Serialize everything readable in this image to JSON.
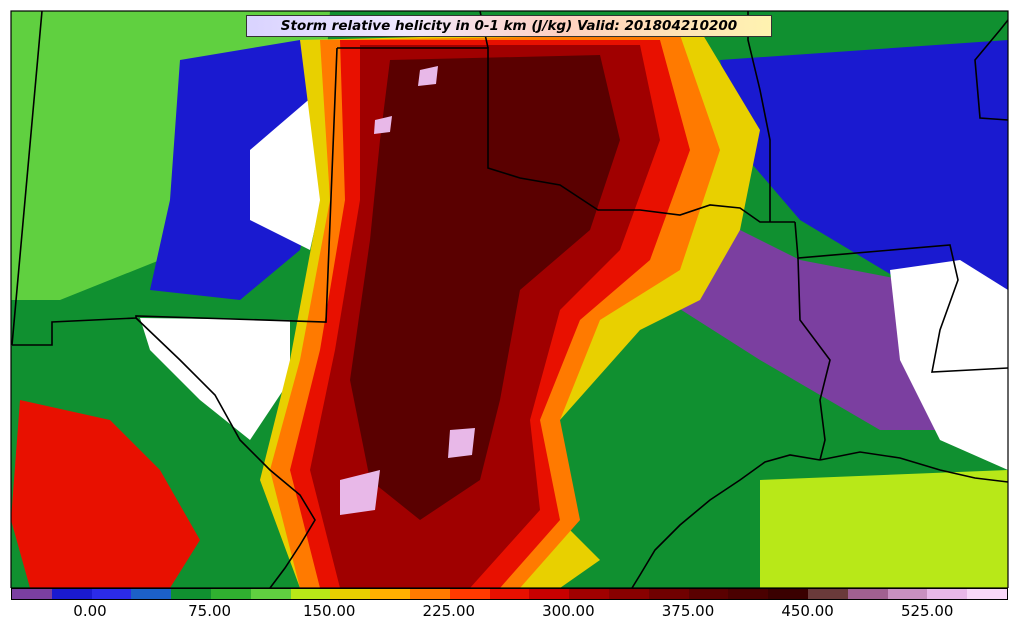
{
  "title": "Storm relative helicity in 0-1 km (J/kg) Valid: 201804210200",
  "colorbar": {
    "colors": [
      "#7b3fa0",
      "#1a1ad0",
      "#2b2be8",
      "#1c60c8",
      "#109030",
      "#30b030",
      "#60d040",
      "#b8e818",
      "#e8d000",
      "#ffb000",
      "#ff7a00",
      "#ff3a00",
      "#e81000",
      "#c80000",
      "#a00000",
      "#880000",
      "#700000",
      "#5a0000",
      "#4a0000",
      "#3a0000",
      "#6a3a3a",
      "#a06090",
      "#c890c0",
      "#e8b8e8",
      "#f8d8f8"
    ],
    "ticks": [
      "0.00",
      "75.00",
      "150.00",
      "225.00",
      "300.00",
      "375.00",
      "450.00",
      "525.00"
    ]
  },
  "map_colors": {
    "white": "#ffffff",
    "purple": "#7b3fa0",
    "blue": "#1a1ad0",
    "green": "#109030",
    "lightgreen": "#60d040",
    "yellowgreen": "#b8e818",
    "yellow": "#e8d000",
    "orange": "#ff7a00",
    "red": "#e81000",
    "darkred": "#a00000",
    "maroon": "#5a0000",
    "pink": "#e8b8e8"
  }
}
